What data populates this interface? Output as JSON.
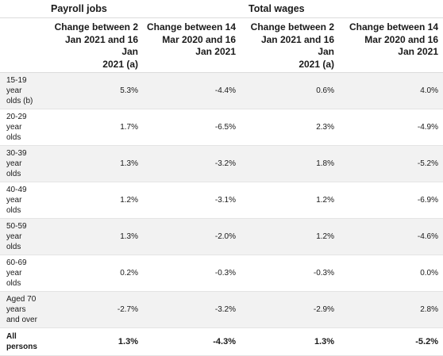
{
  "header": {
    "group_payroll": "Payroll jobs",
    "group_wages": "Total wages",
    "col1": [
      "Change between 2",
      "Jan 2021 and 16 Jan",
      "2021 (a)"
    ],
    "col2": [
      "Change between 14",
      "Mar 2020 and 16",
      "Jan 2021"
    ],
    "col3": [
      "Change between 2",
      "Jan 2021 and 16 Jan",
      "2021 (a)"
    ],
    "col4": [
      "Change between 14",
      "Mar 2020 and 16",
      "Jan 2021"
    ]
  },
  "rows": [
    {
      "label": [
        "15-19",
        "year",
        "olds (b)"
      ],
      "values": [
        "5.3%",
        "-4.4%",
        "0.6%",
        "4.0%"
      ]
    },
    {
      "label": [
        "20-29",
        "year",
        "olds"
      ],
      "values": [
        "1.7%",
        "-6.5%",
        "2.3%",
        "-4.9%"
      ]
    },
    {
      "label": [
        "30-39",
        "year",
        "olds"
      ],
      "values": [
        "1.3%",
        "-3.2%",
        "1.8%",
        "-5.2%"
      ]
    },
    {
      "label": [
        "40-49",
        "year",
        "olds"
      ],
      "values": [
        "1.2%",
        "-3.1%",
        "1.2%",
        "-6.9%"
      ]
    },
    {
      "label": [
        "50-59",
        "year",
        "olds"
      ],
      "values": [
        "1.3%",
        "-2.0%",
        "1.2%",
        "-4.6%"
      ]
    },
    {
      "label": [
        "60-69",
        "year",
        "olds"
      ],
      "values": [
        "0.2%",
        "-0.3%",
        "-0.3%",
        "0.0%"
      ]
    },
    {
      "label": [
        "Aged 70",
        "years",
        "and over"
      ],
      "values": [
        "-2.7%",
        "-3.2%",
        "-2.9%",
        "2.8%"
      ]
    }
  ],
  "total": {
    "label": [
      "All",
      "persons"
    ],
    "values": [
      "1.3%",
      "-4.3%",
      "1.3%",
      "-5.2%"
    ]
  },
  "colors": {
    "row_shade": "#f2f2f2",
    "rule": "#e4e4e4",
    "text": "#1a1a1a"
  }
}
